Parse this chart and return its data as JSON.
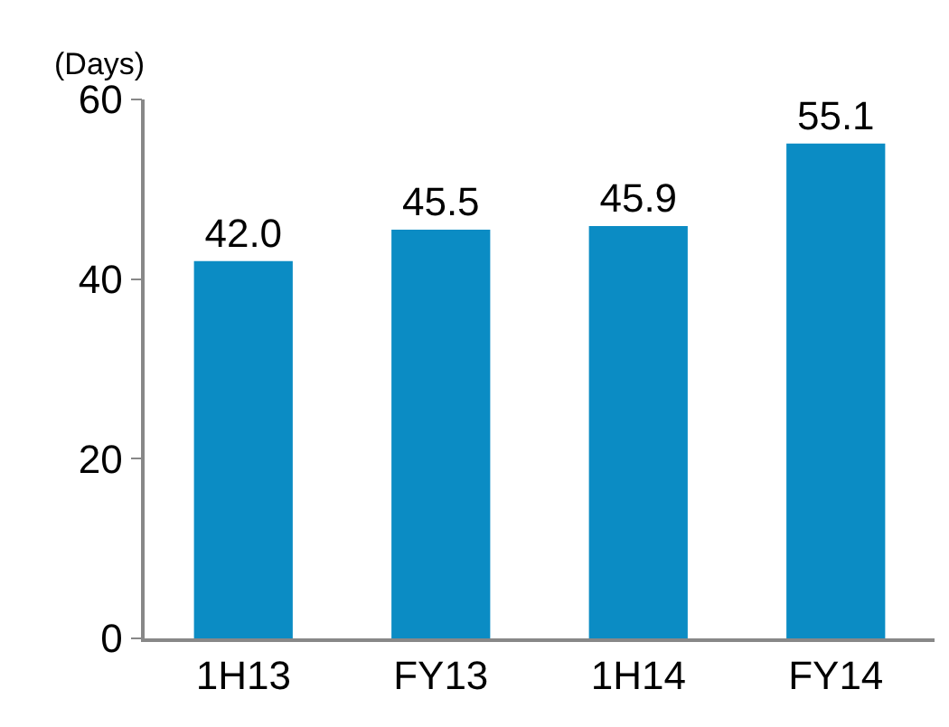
{
  "chart_data": {
    "type": "bar",
    "ylabel": "(Days)",
    "categories": [
      "1H13",
      "FY13",
      "1H14",
      "FY14"
    ],
    "values": [
      42.0,
      45.5,
      45.9,
      55.1
    ],
    "value_labels": [
      "42.0",
      "45.5",
      "45.9",
      "55.1"
    ],
    "color": "#0b8cc4",
    "ylim": [
      0,
      60
    ],
    "yticks": [
      0,
      20,
      40,
      60
    ]
  }
}
